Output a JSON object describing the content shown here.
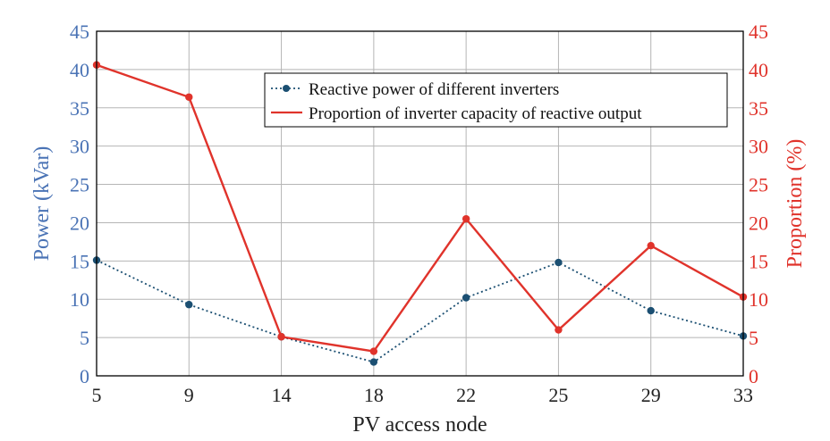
{
  "colors": {
    "left_axis": "#4a73b5",
    "right_axis": "#e0332b",
    "series_reactive": "#1b4f72",
    "series_proportion": "#e0332b",
    "grid": "#b5b5b5"
  },
  "chart_data": {
    "type": "line",
    "xlabel": "PV access node",
    "ylabel_left": "Power (kVar)",
    "ylabel_right": "Proportion (%)",
    "categories": [
      "5",
      "9",
      "14",
      "18",
      "22",
      "25",
      "29",
      "33"
    ],
    "ylim_left": [
      0,
      45
    ],
    "ylim_right": [
      0,
      45
    ],
    "yticks_left": [
      "0",
      "5",
      "10",
      "15",
      "20",
      "25",
      "30",
      "35",
      "40",
      "45"
    ],
    "yticks_right": [
      "0",
      "5",
      "10",
      "15",
      "20",
      "25",
      "30",
      "35",
      "40",
      "45"
    ],
    "grid": true,
    "legend_position": "top-right",
    "series": [
      {
        "name": "Reactive power of different inverters",
        "axis": "left",
        "style": "dotted-with-markers",
        "values": [
          15.1,
          9.3,
          5.1,
          1.8,
          10.2,
          14.8,
          8.5,
          5.2
        ]
      },
      {
        "name": "Proportion of inverter capacity of reactive output",
        "axis": "right",
        "style": "solid-with-markers",
        "values": [
          40.6,
          36.4,
          5.1,
          3.2,
          20.5,
          6.0,
          17.0,
          10.3
        ]
      }
    ]
  }
}
